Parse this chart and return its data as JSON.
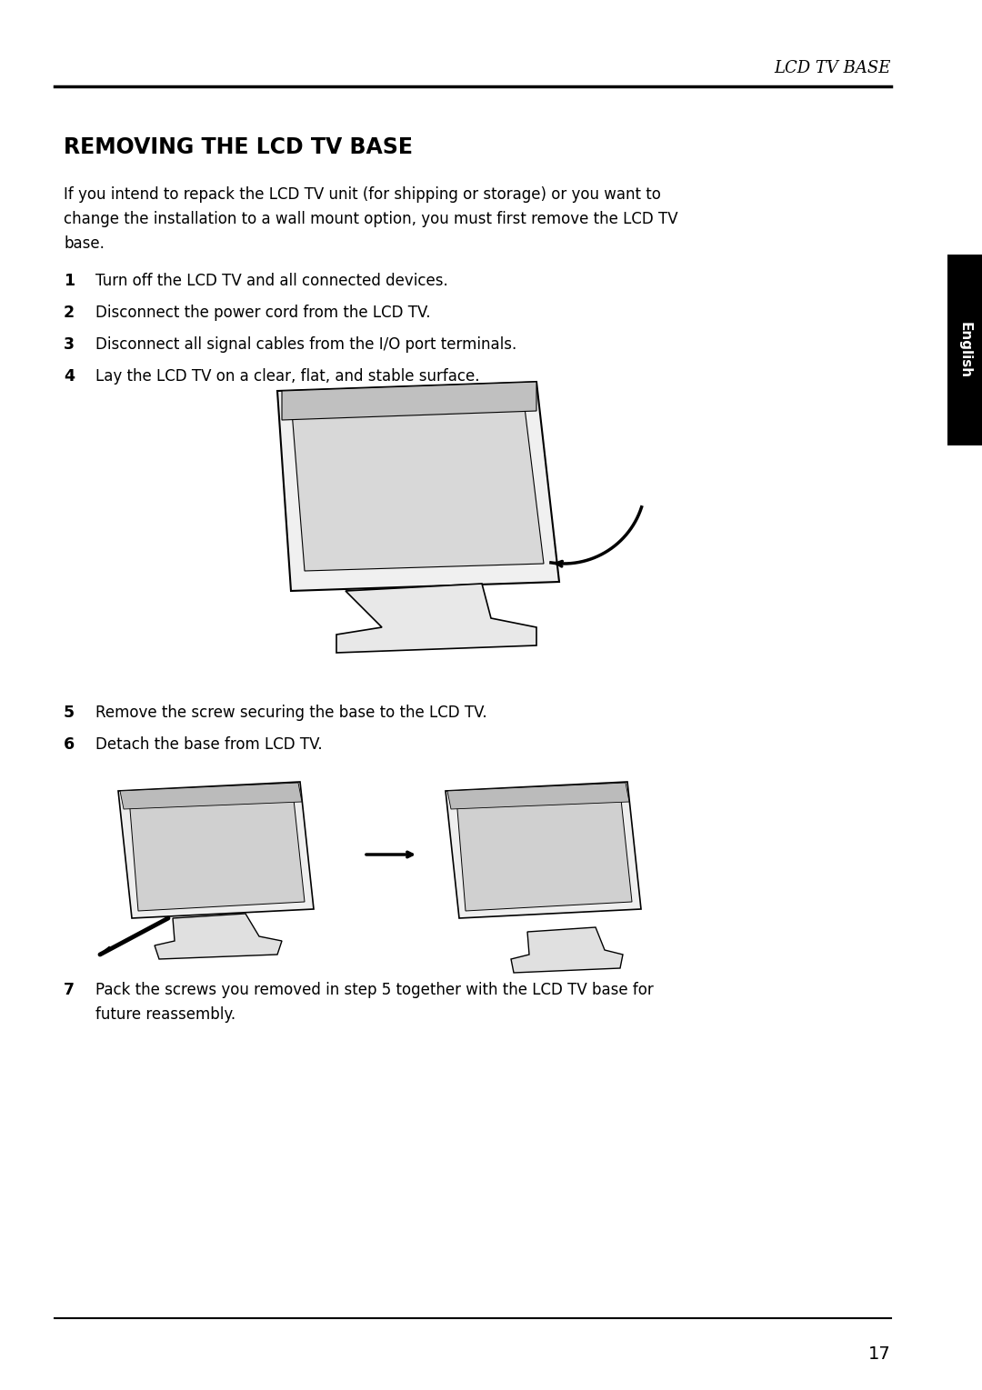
{
  "page_number": "17",
  "header_text": "LCD TV BASE",
  "section_title": "REMOVING THE LCD TV BASE",
  "intro_text": "If you intend to repack the LCD TV unit (for shipping or storage) or you want to\nchange the installation to a wall mount option, you must first remove the LCD TV\nbase.",
  "steps": [
    {
      "num": "1",
      "text": "Turn off the LCD TV and all connected devices."
    },
    {
      "num": "2",
      "text": "Disconnect the power cord from the LCD TV."
    },
    {
      "num": "3",
      "text": "Disconnect all signal cables from the I/O port terminals."
    },
    {
      "num": "4",
      "text": "Lay the LCD TV on a clear, flat, and stable surface."
    },
    {
      "num": "5",
      "text": "Remove the screw securing the base to the LCD TV."
    },
    {
      "num": "6",
      "text": "Detach the base from LCD TV."
    },
    {
      "num": "7",
      "text": "Pack the screws you removed in step 5 together with the LCD TV base for\n    future reassembly."
    }
  ],
  "tab_text": "English",
  "bg_color": "#ffffff",
  "text_color": "#000000",
  "tab_bg": "#000000",
  "tab_text_color": "#ffffff",
  "header_line_color": "#000000",
  "footer_line_color": "#000000"
}
